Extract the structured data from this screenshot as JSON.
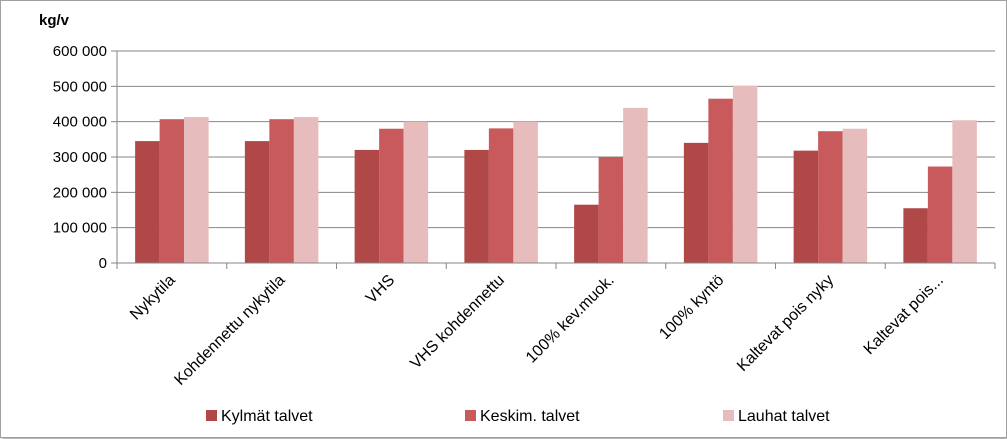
{
  "chart_data": {
    "type": "bar",
    "ylabel": "kg/v",
    "ylim": [
      0,
      600000
    ],
    "yticks": [
      0,
      100000,
      200000,
      300000,
      400000,
      500000,
      600000
    ],
    "ytick_labels": [
      "0",
      "100 000",
      "200 000",
      "300 000",
      "400 000",
      "500 000",
      "600 000"
    ],
    "grid": true,
    "legend_position": "bottom",
    "categories": [
      "Nykytila",
      "Kohdennettu nykytila",
      "VHS",
      "VHS kohdennettu",
      "100% kev.muok.",
      "100% kyntö",
      "Kaltevat pois nyky",
      "Kaltevat pois..."
    ],
    "series": [
      {
        "name": "Kylmät talvet",
        "color": "#b04848",
        "values": [
          345000,
          345000,
          320000,
          320000,
          165000,
          340000,
          318000,
          155000
        ]
      },
      {
        "name": "Keskim. talvet",
        "color": "#c85a5c",
        "values": [
          407000,
          407000,
          380000,
          381000,
          300000,
          465000,
          373000,
          273000
        ]
      },
      {
        "name": "Lauhat talvet",
        "color": "#e6bcbc",
        "values": [
          413000,
          413000,
          400000,
          400000,
          439000,
          502000,
          380000,
          404000
        ]
      }
    ]
  }
}
